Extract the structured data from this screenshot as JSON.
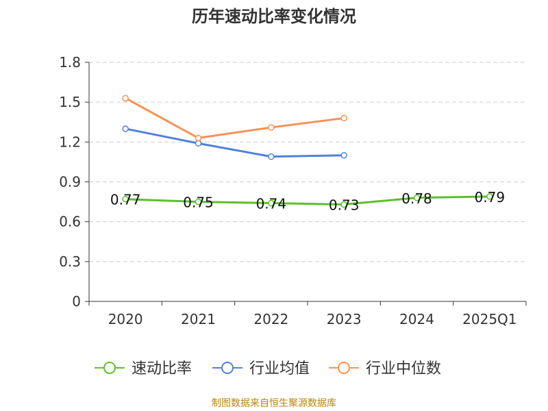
{
  "chart_data": {
    "type": "line",
    "title": "历年速动比率变化情况",
    "categories": [
      "2020",
      "2021",
      "2022",
      "2023",
      "2024",
      "2025Q1"
    ],
    "ylim": [
      0,
      1.8
    ],
    "yticks": [
      "0",
      "0.3",
      "0.6",
      "0.9",
      "1.2",
      "1.5",
      "1.8"
    ],
    "grid": true,
    "legend_position": "bottom",
    "series": [
      {
        "name": "速动比率",
        "color": "#5cbf2a",
        "values": [
          0.77,
          0.75,
          0.74,
          0.73,
          0.78,
          0.79
        ],
        "labels": [
          "0.77",
          "0.75",
          "0.74",
          "0.73",
          "0.78",
          "0.79"
        ]
      },
      {
        "name": "行业均值",
        "color": "#4f81db",
        "values": [
          1.3,
          1.19,
          1.09,
          1.1,
          null,
          null
        ]
      },
      {
        "name": "行业中位数",
        "color": "#f79256",
        "values": [
          1.53,
          1.23,
          1.31,
          1.38,
          null,
          null
        ]
      }
    ]
  },
  "source_text": "制图数据来自恒生聚源数据库"
}
